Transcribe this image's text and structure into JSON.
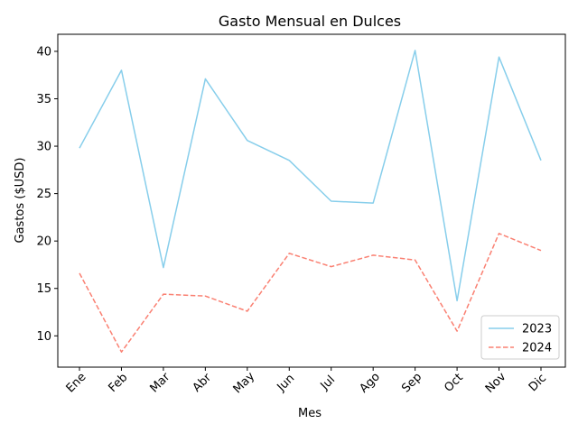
{
  "chart_data": {
    "type": "line",
    "title": "Gasto Mensual en Dulces",
    "xlabel": "Mes",
    "ylabel": "Gastos ($USD)",
    "categories": [
      "Ene",
      "Feb",
      "Mar",
      "Abr",
      "May",
      "Jun",
      "Jul",
      "Ago",
      "Sep",
      "Oct",
      "Nov",
      "Dic"
    ],
    "ylim": [
      6.7,
      41.8
    ],
    "yticks": [
      10,
      15,
      20,
      25,
      30,
      35,
      40
    ],
    "grid": false,
    "legend_position": "lower-right",
    "series": [
      {
        "name": "2023",
        "color": "#87ceeb",
        "style": "solid",
        "values": [
          29.8,
          38.0,
          17.2,
          37.1,
          30.6,
          28.5,
          24.2,
          24.0,
          40.1,
          13.7,
          39.4,
          28.5
        ]
      },
      {
        "name": "2024",
        "color": "#fa8072",
        "style": "dashed",
        "values": [
          16.6,
          8.3,
          14.4,
          14.2,
          12.6,
          18.7,
          17.3,
          18.5,
          18.0,
          10.5,
          20.8,
          19.0
        ]
      }
    ]
  }
}
